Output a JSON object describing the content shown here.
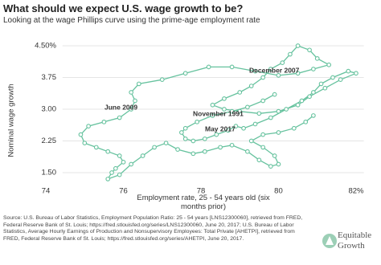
{
  "chart_data": {
    "type": "line",
    "title": "What should we expect U.S. wage growth to be?",
    "subtitle": "Looking at the wage Phillips curve using the prime-age employment rate",
    "x_label": "Employment rate, 25 - 54 years old (six months prior)",
    "y_label": "Nominal wage growth",
    "annotations": [
      "December 2007",
      "June 2009",
      "November 1991",
      "May 2017"
    ],
    "color": "#66c29e",
    "x": [
      79.9,
      79.6,
      79.2,
      78.8,
      78.3,
      77.9,
      77.6,
      77.5,
      77.6,
      77.8,
      78.1,
      78.4,
      78.7,
      78.9,
      79.1,
      79.4,
      79.8,
      80.2,
      80.6,
      80.9,
      81.1,
      81.4,
      81.8,
      82.0,
      81.6,
      81.2,
      80.8,
      80.5,
      80.0,
      79.5,
      79.0,
      78.6,
      78.3,
      78.6,
      79.0,
      79.3,
      79.6,
      79.8,
      80.1,
      80.3,
      80.5,
      80.8,
      81.0,
      81.3,
      80.9,
      80.5,
      80.0,
      79.4,
      78.8,
      78.2,
      77.6,
      77.0,
      76.4,
      76.2,
      76.3,
      76.2,
      75.9,
      75.5,
      75.1,
      74.9,
      75.0,
      75.3,
      75.6,
      75.9,
      76.0,
      75.8,
      75.7,
      75.6,
      75.9,
      76.2,
      76.5,
      76.8,
      77.1,
      77.4,
      77.8,
      78.1,
      78.5,
      78.8,
      79.2,
      79.5,
      79.8,
      80.0,
      79.9,
      79.6,
      79.3,
      79.6,
      80.0,
      80.4,
      80.7,
      80.9
    ],
    "values": [
      3.35,
      3.2,
      3.05,
      2.95,
      2.85,
      2.7,
      2.55,
      2.45,
      2.3,
      2.25,
      2.3,
      2.4,
      2.5,
      2.6,
      2.55,
      2.65,
      2.8,
      3.0,
      3.2,
      3.4,
      3.6,
      3.75,
      3.9,
      3.85,
      3.7,
      3.5,
      3.3,
      3.1,
      2.95,
      2.9,
      2.95,
      3.0,
      3.1,
      3.25,
      3.4,
      3.55,
      3.75,
      3.95,
      4.1,
      4.3,
      4.5,
      4.4,
      4.2,
      4.05,
      3.95,
      3.85,
      3.8,
      3.9,
      4.0,
      4.0,
      3.85,
      3.7,
      3.6,
      3.4,
      3.2,
      3.0,
      2.8,
      2.7,
      2.6,
      2.4,
      2.2,
      2.1,
      2.0,
      1.9,
      1.75,
      1.6,
      1.5,
      1.35,
      1.45,
      1.7,
      1.9,
      2.1,
      2.2,
      2.05,
      1.95,
      2.0,
      2.1,
      2.15,
      2.0,
      1.8,
      1.65,
      1.7,
      1.9,
      2.1,
      2.25,
      2.4,
      2.45,
      2.55,
      2.7,
      2.85
    ],
    "xlim": [
      73.85,
      82.2
    ],
    "ylim": [
      1.25,
      4.62
    ],
    "xticks": [
      74,
      76,
      78,
      80,
      {
        "value": 82,
        "label": "82%"
      }
    ],
    "yticks": [
      {
        "value": 4.5,
        "label": "4.50%"
      },
      {
        "value": 3.75,
        "label": "3.75"
      },
      {
        "value": 3,
        "label": "3.00"
      },
      2.25,
      {
        "value": 1.5,
        "label": "1.50"
      }
    ],
    "grid": true
  },
  "source": "Source: U.S. Bureau of Labor Statistics, Employment Population Ratio: 25 - 54 years [LNS12300060], retrieved from FRED, Federal Reserve Bank of St. Louis; https://fred.stlouisfed.org/series/LNS12300060, June 20, 2017; U.S. Bureau of Labor Statistics, Average Hourly Earnings of Production and Nonsupervisory Employees: Total Private [AHETPI], retrieved from FRED, Federal Reserve Bank of St. Louis; https://fred.stlouisfed.org/series/AHETPI, June 20, 2017.",
  "logo": [
    "Equitable",
    "Growth"
  ]
}
